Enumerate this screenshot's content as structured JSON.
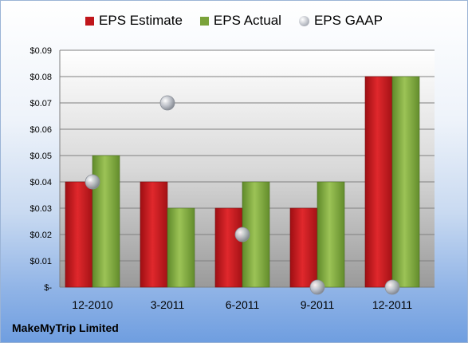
{
  "chart_data": {
    "type": "bar",
    "title": "",
    "xlabel": "",
    "ylabel": "",
    "categories": [
      "12-2010",
      "3-2011",
      "6-2011",
      "9-2011",
      "12-2011"
    ],
    "ylim": [
      0,
      0.09
    ],
    "yticks": [
      0,
      0.01,
      0.02,
      0.03,
      0.04,
      0.05,
      0.06,
      0.07,
      0.08,
      0.09
    ],
    "ytick_labels": [
      "$-",
      "$0.01",
      "$0.02",
      "$0.03",
      "$0.04",
      "$0.05",
      "$0.06",
      "$0.07",
      "$0.08",
      "$0.09"
    ],
    "grid": true,
    "legend_position": "top",
    "series": [
      {
        "name": "EPS Estimate",
        "type": "bar",
        "color": "#c0161b",
        "values": [
          0.04,
          0.04,
          0.03,
          0.03,
          0.08
        ]
      },
      {
        "name": "EPS Actual",
        "type": "bar",
        "color": "#7aa23a",
        "values": [
          0.05,
          0.03,
          0.04,
          0.04,
          0.08
        ]
      },
      {
        "name": "EPS GAAP",
        "type": "scatter",
        "color": "#b3b7bf",
        "values": [
          0.04,
          0.07,
          0.02,
          0.0,
          0.0
        ]
      }
    ]
  },
  "footer": {
    "company": "MakeMyTrip Limited"
  }
}
